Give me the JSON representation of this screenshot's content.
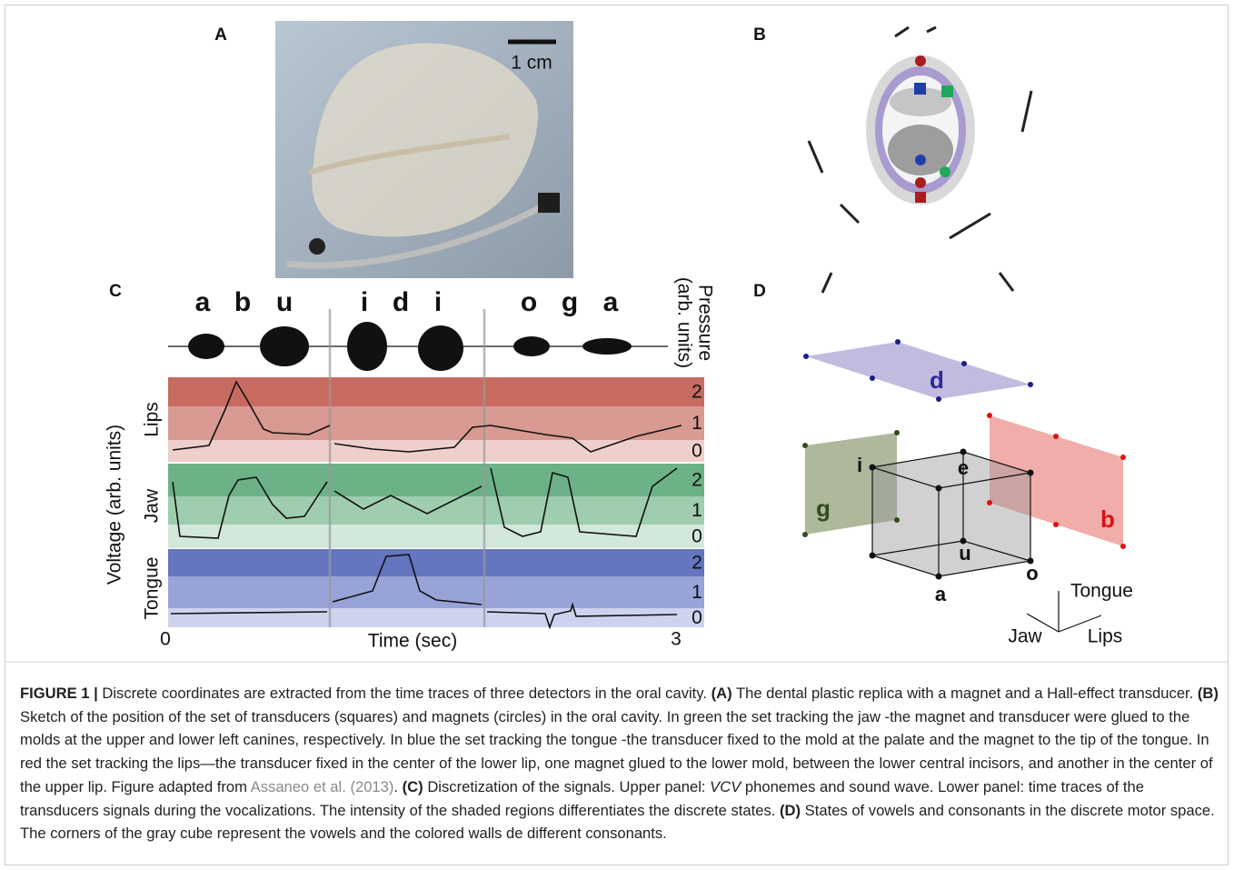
{
  "panels": {
    "A": {
      "label": "A",
      "scale_bar": "1 cm"
    },
    "B": {
      "label": "B"
    },
    "C": {
      "label": "C",
      "phonemes": [
        "a",
        "b",
        "u",
        "i",
        "d",
        "i",
        "o",
        "g",
        "a"
      ],
      "pressure_label": [
        "Pressure",
        "(arb. units)"
      ],
      "y_label": "Voltage (arb. units)",
      "tracks": [
        "Lips",
        "Jaw",
        "Tongue"
      ],
      "levels": [
        2,
        1,
        0
      ],
      "x_start": 0,
      "x_end": 3,
      "x_label": "Time (sec)"
    },
    "D": {
      "label": "D",
      "consonants": [
        "d",
        "g",
        "b"
      ],
      "vowels": [
        "i",
        "e",
        "u",
        "o",
        "a"
      ],
      "axes": [
        "Tongue",
        "Jaw",
        "Lips"
      ]
    }
  },
  "caption": [
    "FIGURE 1 |",
    " Discrete coordinates are extracted from the time traces of three detectors in the oral cavity. ",
    "(A)",
    " The dental plastic replica with a magnet and a Hall-effect transducer. ",
    "(B)",
    " Sketch of the position of the set of transducers (squares) and magnets (circles) in the oral cavity. In green the set tracking the jaw -the magnet and transducer were glued to the molds at the upper and lower left canines, respectively. In blue the set tracking the tongue -the transducer fixed to the mold at the palate and the magnet to the tip of the tongue. In red the set tracking the lips—the transducer fixed in the center of the lower lip, one magnet glued to the lower mold, between the lower central incisors, and another in the center of the upper lip. Figure adapted from ",
    "Assaneo et al. (2013)",
    ". ",
    "(C)",
    " Discretization of the signals. Upper panel: ",
    "VCV",
    " phonemes and sound wave. Lower panel: time traces of the transducers signals during the vocalizations. The intensity of the shaded regions differentiates the discrete states. ",
    "(D)",
    " States of vowels and consonants in the discrete motor space. The corners of the gray cube represent the vowels and the colored walls de different consonants."
  ]
}
